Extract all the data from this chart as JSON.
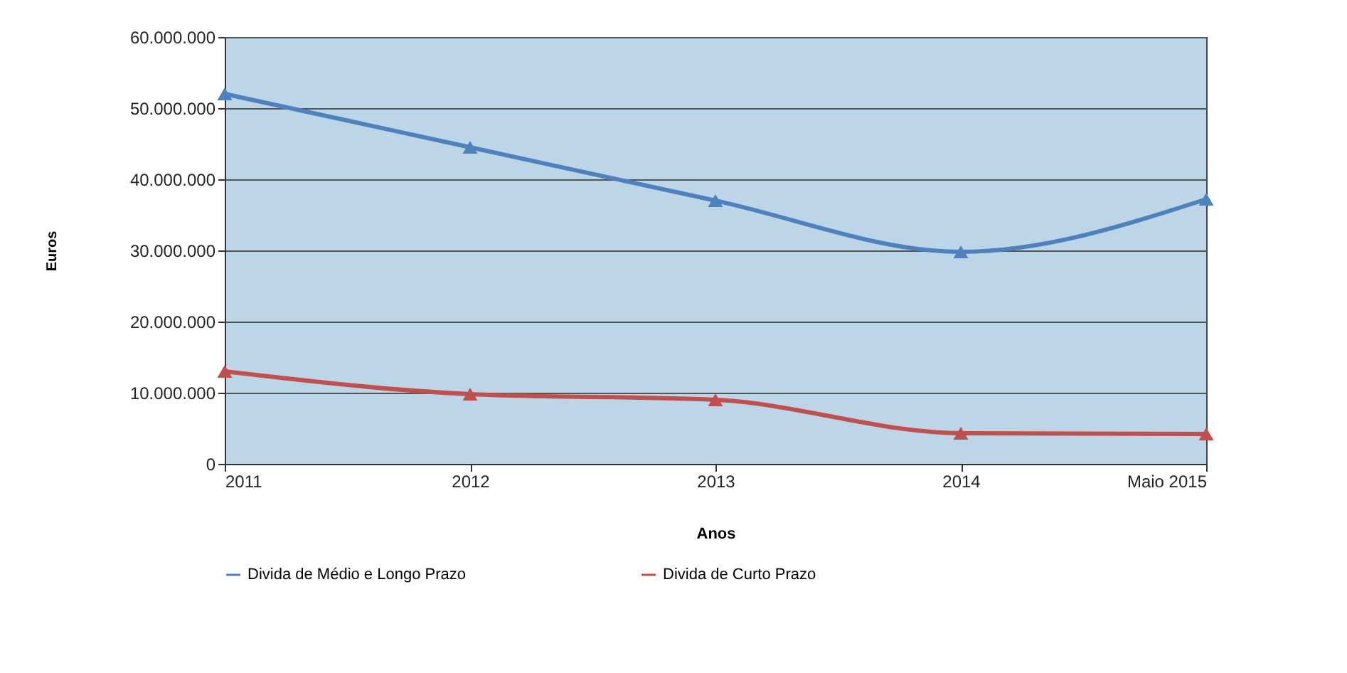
{
  "chart_data": {
    "type": "line",
    "xlabel": "Anos",
    "ylabel": "Euros",
    "categories": [
      "2011",
      "2012",
      "2013",
      "2014",
      "Maio 2015"
    ],
    "series": [
      {
        "name": "Divida de Médio e Longo Prazo",
        "color": "#4f81bd",
        "values": [
          52000000,
          44500000,
          37000000,
          29800000,
          37200000
        ]
      },
      {
        "name": "Divida de Curto Prazo",
        "color": "#c0504d",
        "values": [
          13000000,
          9800000,
          9000000,
          4300000,
          4200000
        ]
      }
    ],
    "ylim": [
      0,
      60000000
    ],
    "yticks": [
      {
        "value": 0,
        "label": "0"
      },
      {
        "value": 10000000,
        "label": "10.000.000"
      },
      {
        "value": 20000000,
        "label": "20.000.000"
      },
      {
        "value": 30000000,
        "label": "30.000.000"
      },
      {
        "value": 40000000,
        "label": "40.000.000"
      },
      {
        "value": 50000000,
        "label": "50.000.000"
      },
      {
        "value": 60000000,
        "label": "60.000.000"
      }
    ],
    "grid": "y",
    "legend": "bottom",
    "marker": "triangle",
    "line_style": "solid"
  }
}
